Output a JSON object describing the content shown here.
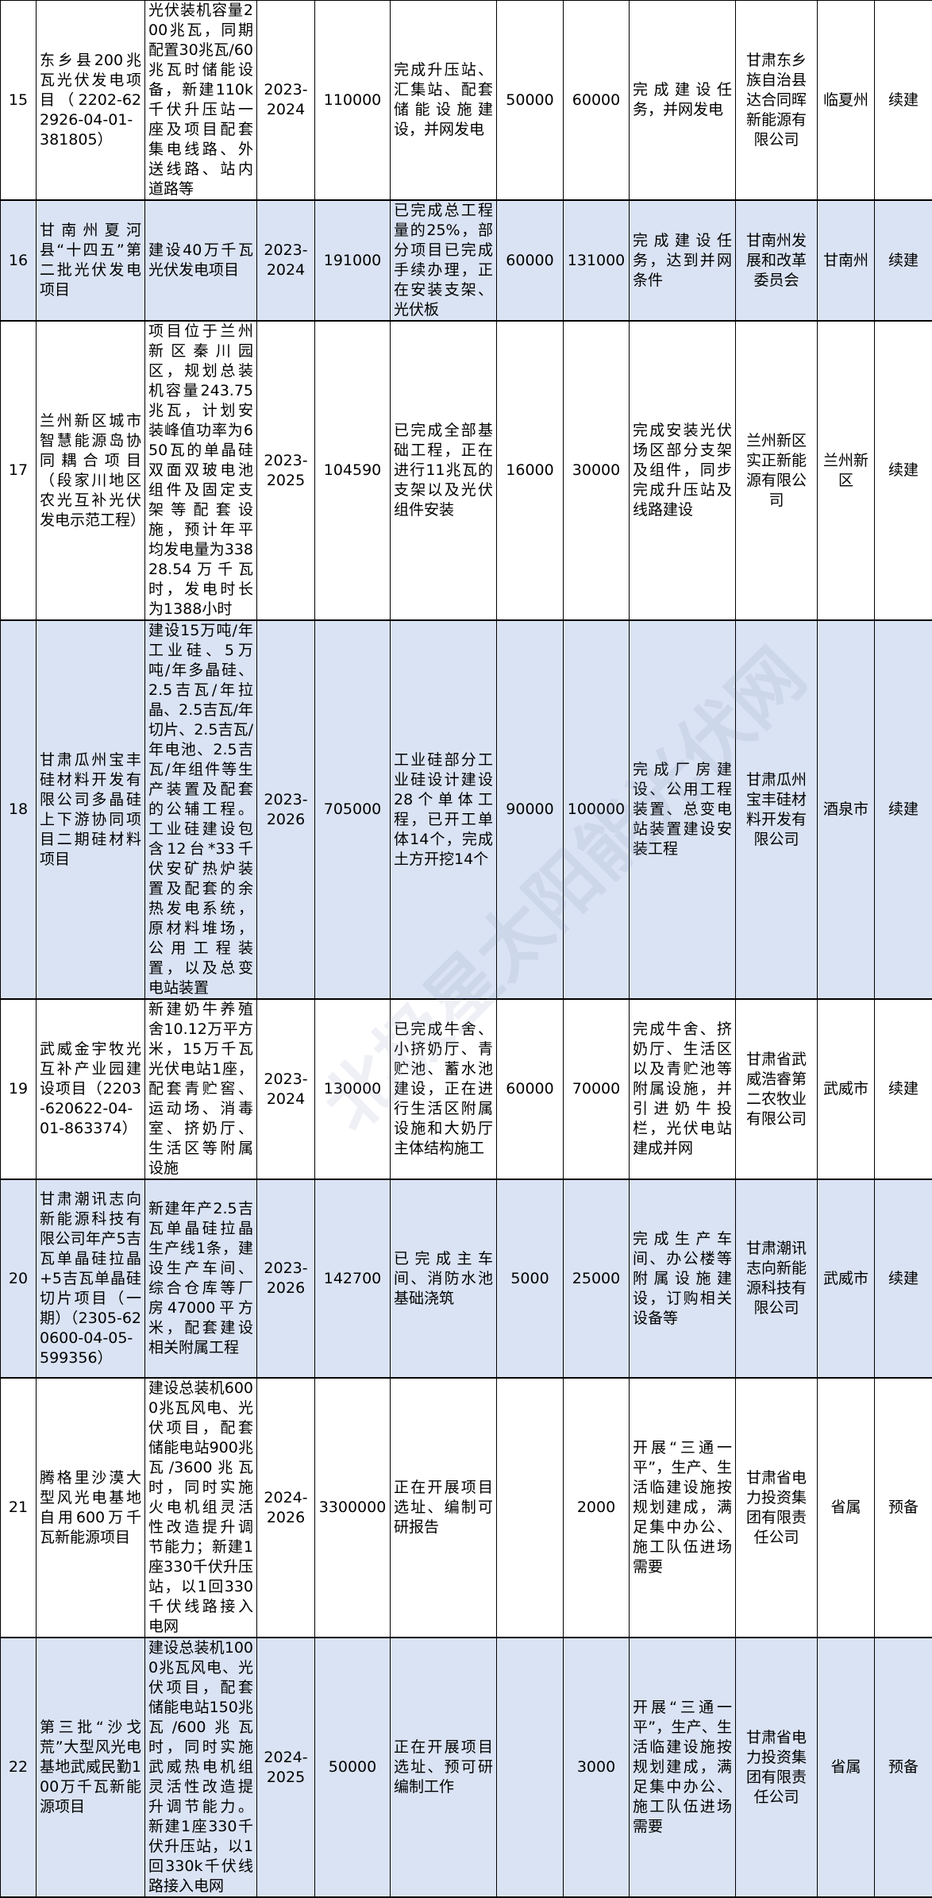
{
  "colors": {
    "row_alt": "#dae3f3",
    "row": "#ffffff",
    "border": "#000000"
  },
  "watermark": "北极星太阳能光伏网",
  "rows": [
    {
      "no": "15",
      "name": "东乡县200兆瓦光伏发电项目（2202-622926-04-01-381805）",
      "content": "光伏装机容量200兆瓦，同期配置30兆瓦/60兆瓦时储能设备，新建110k千伏升压站一座及项目配套集电线路、外送线路、站内道路等",
      "period": "2023-2024",
      "total": "110000",
      "progress": "完成升压站、汇集站、配套储能设施建设，并网发电",
      "invested": "50000",
      "plan": "60000",
      "goal": "完成建设任务，并网发电",
      "owner": "甘肃东乡族自治县达合同晖新能源有限公司",
      "region": "临夏州",
      "status": "续建"
    },
    {
      "no": "16",
      "name": "甘南州夏河县“十四五”第二批光伏发电项目",
      "content": "建设40万千瓦光伏发电项目",
      "period": "2023-2024",
      "total": "191000",
      "progress": "已完成总工程量的25%，部分项目已完成手续办理，正在安装支架、光伏板",
      "invested": "60000",
      "plan": "131000",
      "goal": "完成建设任务，达到并网条件",
      "owner": "甘南州发展和改革委员会",
      "region": "甘南州",
      "status": "续建"
    },
    {
      "no": "17",
      "name": "兰州新区城市智慧能源岛协同耦合项目（段家川地区农光互补光伏发电示范工程）",
      "content": "项目位于兰州新区秦川园区，规划总装机容量243.75兆瓦，计划安装峰值功率为650瓦的单晶硅双面双玻电池组件及固定支架等配套设施，预计年平均发电量为33828.54万千瓦时，发电时长为1388小时",
      "period": "2023-2025",
      "total": "104590",
      "progress": "已完成全部基础工程，正在进行11兆瓦的支架以及光伏组件安装",
      "invested": "16000",
      "plan": "30000",
      "goal": "完成安装光伏场区部分支架及组件，同步完成升压站及线路建设",
      "owner": "兰州新区实正新能源有限公司",
      "region": "兰州新区",
      "status": "续建"
    },
    {
      "no": "18",
      "name": "甘肃瓜州宝丰硅材料开发有限公司多晶硅上下游协同项目二期硅材料项目",
      "content": "建设15万吨/年工业硅、5万吨/年多晶硅、2.5吉瓦/年拉晶、2.5吉瓦/年切片、2.5吉瓦/年电池、2.5吉瓦/年组件等生产装置及配套的公辅工程。工业硅建设包含12台*33千伏安矿热炉装置及配套的余热发电系统，原材料堆场，公用工程装置，以及总变电站装置",
      "period": "2023-2026",
      "total": "705000",
      "progress": "工业硅部分工业硅设计建设28个单体工程，已开工单体14个，完成土方开挖14个",
      "invested": "90000",
      "plan": "100000",
      "goal": "完成厂房建设、公用工程装置、总变电站装置建设安装工程",
      "owner": "甘肃瓜州宝丰硅材料开发有限公司",
      "region": "酒泉市",
      "status": "续建"
    },
    {
      "no": "19",
      "name": "武威金宇牧光互补产业园建设项目（2203-620622-04-01-863374）",
      "content": "新建奶牛养殖舍10.12万平方米，15万千瓦光伏电站1座，配套青贮窖、运动场、消毒室、挤奶厅、生活区等附属设施",
      "period": "2023-2024",
      "total": "130000",
      "progress": "已完成牛舍、小挤奶厅、青贮池、蓄水池建设，正在进行生活区附属设施和大奶厅主体结构施工",
      "invested": "60000",
      "plan": "70000",
      "goal": "完成牛舍、挤奶厅、生活区以及青贮池等附属设施，并引进奶牛投栏，光伏电站建成并网",
      "owner": "甘肃省武威浩睿第二农牧业有限公司",
      "region": "武威市",
      "status": "续建"
    },
    {
      "no": "20",
      "name": "甘肃潮讯志向新能源科技有限公司年产5吉瓦单晶硅拉晶+5吉瓦单晶硅切片项目（一期）（2305-620600-04-05-599356）",
      "content": "新建年产2.5吉瓦单晶硅拉晶生产线1条，建设生产车间、综合仓库等厂房47000平方米，配套建设相关附属工程",
      "period": "2023-2026",
      "total": "142700",
      "progress": "已完成主车间、消防水池基础浇筑",
      "invested": "5000",
      "plan": "25000",
      "goal": "完成生产车间、办公楼等附属设施建设，订购相关设备等",
      "owner": "甘肃潮讯志向新能源科技有限公司",
      "region": "武威市",
      "status": "续建"
    },
    {
      "no": "21",
      "name": "腾格里沙漠大型风光电基地自用600万千瓦新能源项目",
      "content": "建设总装机6000兆瓦风电、光伏项目，配套储能电站900兆瓦/3600兆瓦时，同时实施火电机组灵活性改造提升调节能力；新建1座330千伏升压站，以1回330千伏线路接入电网",
      "period": "2024-2026",
      "total": "3300000",
      "progress": "正在开展项目选址、编制可研报告",
      "invested": "",
      "plan": "2000",
      "goal": "开展“三通一平”，生产、生活临建设施按规划建成，满足集中办公、施工队伍进场需要",
      "owner": "甘肃省电力投资集团有限责任公司",
      "region": "省属",
      "status": "预备"
    },
    {
      "no": "22",
      "name": "第三批“沙戈荒”大型风光电基地武威民勤100万千瓦新能源项目",
      "content": "建设总装机1000兆瓦风电、光伏项目，配套储能电站150兆瓦/600兆瓦时，同时实施武威热电机组灵活性改造提升调节能力。新建1座330千伏升压站，以1回330k千伏线路接入电网",
      "period": "2024-2025",
      "total": "50000",
      "progress": "正在开展项目选址、预可研编制工作",
      "invested": "",
      "plan": "3000",
      "goal": "开展“三通一平”，生产、生活临建设施按规划建成，满足集中办公、施工队伍进场需要",
      "owner": "甘肃省电力投资集团有限责任公司",
      "region": "省属",
      "status": "预备"
    }
  ]
}
